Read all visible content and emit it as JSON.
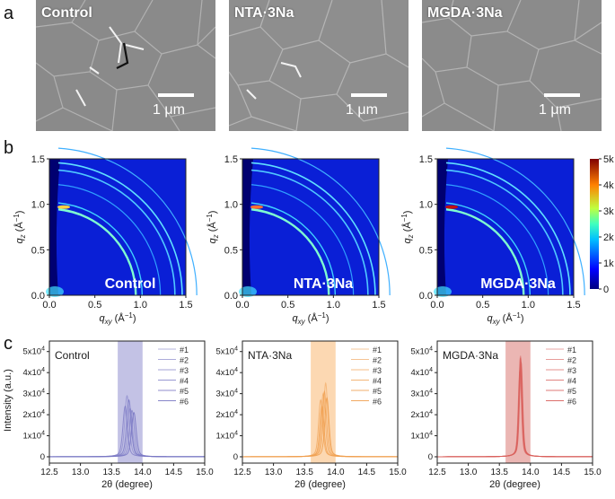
{
  "panels": {
    "a": {
      "letter": "a",
      "images": [
        {
          "label": "Control",
          "scale": "1 μm"
        },
        {
          "label": "NTA·3Na",
          "scale": "1 μm"
        },
        {
          "label": "MGDA·3Na",
          "scale": "1 μm"
        }
      ]
    },
    "b": {
      "letter": "b",
      "maps": [
        {
          "label": "Control"
        },
        {
          "label": "NTA·3Na"
        },
        {
          "label": "MGDA·3Na"
        }
      ],
      "xlabel_main": "q",
      "xlabel_sub": "xy",
      "ylabel_main": "q",
      "ylabel_sub": "z",
      "unit_open": " (Å",
      "unit_exp": "−1",
      "unit_close": ")",
      "xticks": [
        "0.0",
        "0.5",
        "1.0",
        "1.5"
      ],
      "yticks": [
        "0.0",
        "0.5",
        "1.0",
        "1.5"
      ],
      "colorbar_ticks": [
        "5k",
        "4k",
        "3k",
        "2k",
        "1k",
        "0"
      ]
    },
    "c": {
      "letter": "c",
      "ylabel": "Intensity (a.u.)",
      "xlabel": "2θ (degree)",
      "yticks": [
        {
          "base": "5x10",
          "exp": "4",
          "value": 50000
        },
        {
          "base": "4x10",
          "exp": "4",
          "value": 40000
        },
        {
          "base": "3x10",
          "exp": "4",
          "value": 30000
        },
        {
          "base": "2x10",
          "exp": "4",
          "value": 20000
        },
        {
          "base": "1x10",
          "exp": "4",
          "value": 10000
        },
        {
          "base": "0",
          "exp": "",
          "value": 0
        }
      ],
      "xticks": [
        "12.5",
        "13.0",
        "13.5",
        "14.0",
        "14.5",
        "15.0"
      ]
    }
  },
  "chart_data": [
    {
      "type": "line",
      "title": "Control",
      "xlabel": "2θ (degree)",
      "ylabel": "Intensity (a.u.)",
      "xlim": [
        12.5,
        15.0
      ],
      "ylim": [
        -3000,
        55000
      ],
      "highlight_band": [
        13.6,
        14.0
      ],
      "color": "#7a78c4",
      "band_color": "#b9b7e0",
      "series": [
        {
          "name": "#1",
          "center": 13.75,
          "peak": 29000,
          "width": 0.05
        },
        {
          "name": "#2",
          "center": 13.8,
          "peak": 23000,
          "width": 0.05
        },
        {
          "name": "#3",
          "center": 13.83,
          "peak": 22000,
          "width": 0.05
        },
        {
          "name": "#4",
          "center": 13.72,
          "peak": 24000,
          "width": 0.05
        },
        {
          "name": "#5",
          "center": 13.78,
          "peak": 27000,
          "width": 0.05
        },
        {
          "name": "#6",
          "center": 13.86,
          "peak": 21000,
          "width": 0.05
        }
      ]
    },
    {
      "type": "line",
      "title": "NTA·3Na",
      "xlabel": "2θ (degree)",
      "ylabel": "",
      "xlim": [
        12.5,
        15.0
      ],
      "ylim": [
        -3000,
        55000
      ],
      "highlight_band": [
        13.6,
        14.0
      ],
      "color": "#f0a050",
      "band_color": "#fbd1a4",
      "series": [
        {
          "name": "#1",
          "center": 13.84,
          "peak": 35000,
          "width": 0.045
        },
        {
          "name": "#2",
          "center": 13.8,
          "peak": 30000,
          "width": 0.045
        },
        {
          "name": "#3",
          "center": 13.76,
          "peak": 27000,
          "width": 0.045
        },
        {
          "name": "#4",
          "center": 13.82,
          "peak": 31000,
          "width": 0.045
        },
        {
          "name": "#5",
          "center": 13.78,
          "peak": 24000,
          "width": 0.045
        },
        {
          "name": "#6",
          "center": 13.86,
          "peak": 28000,
          "width": 0.045
        }
      ]
    },
    {
      "type": "line",
      "title": "MGDA·3Na",
      "xlabel": "2θ (degree)",
      "ylabel": "",
      "xlim": [
        12.5,
        15.0
      ],
      "ylim": [
        -3000,
        55000
      ],
      "highlight_band": [
        13.6,
        14.0
      ],
      "color": "#d9605c",
      "band_color": "#e8a9a6",
      "series": [
        {
          "name": "#1",
          "center": 13.84,
          "peak": 48000,
          "width": 0.035
        },
        {
          "name": "#2",
          "center": 13.84,
          "peak": 44000,
          "width": 0.035
        },
        {
          "name": "#3",
          "center": 13.83,
          "peak": 41000,
          "width": 0.035
        },
        {
          "name": "#4",
          "center": 13.84,
          "peak": 42000,
          "width": 0.035
        },
        {
          "name": "#5",
          "center": 13.85,
          "peak": 45000,
          "width": 0.035
        },
        {
          "name": "#6",
          "center": 13.84,
          "peak": 47000,
          "width": 0.035
        }
      ]
    }
  ]
}
